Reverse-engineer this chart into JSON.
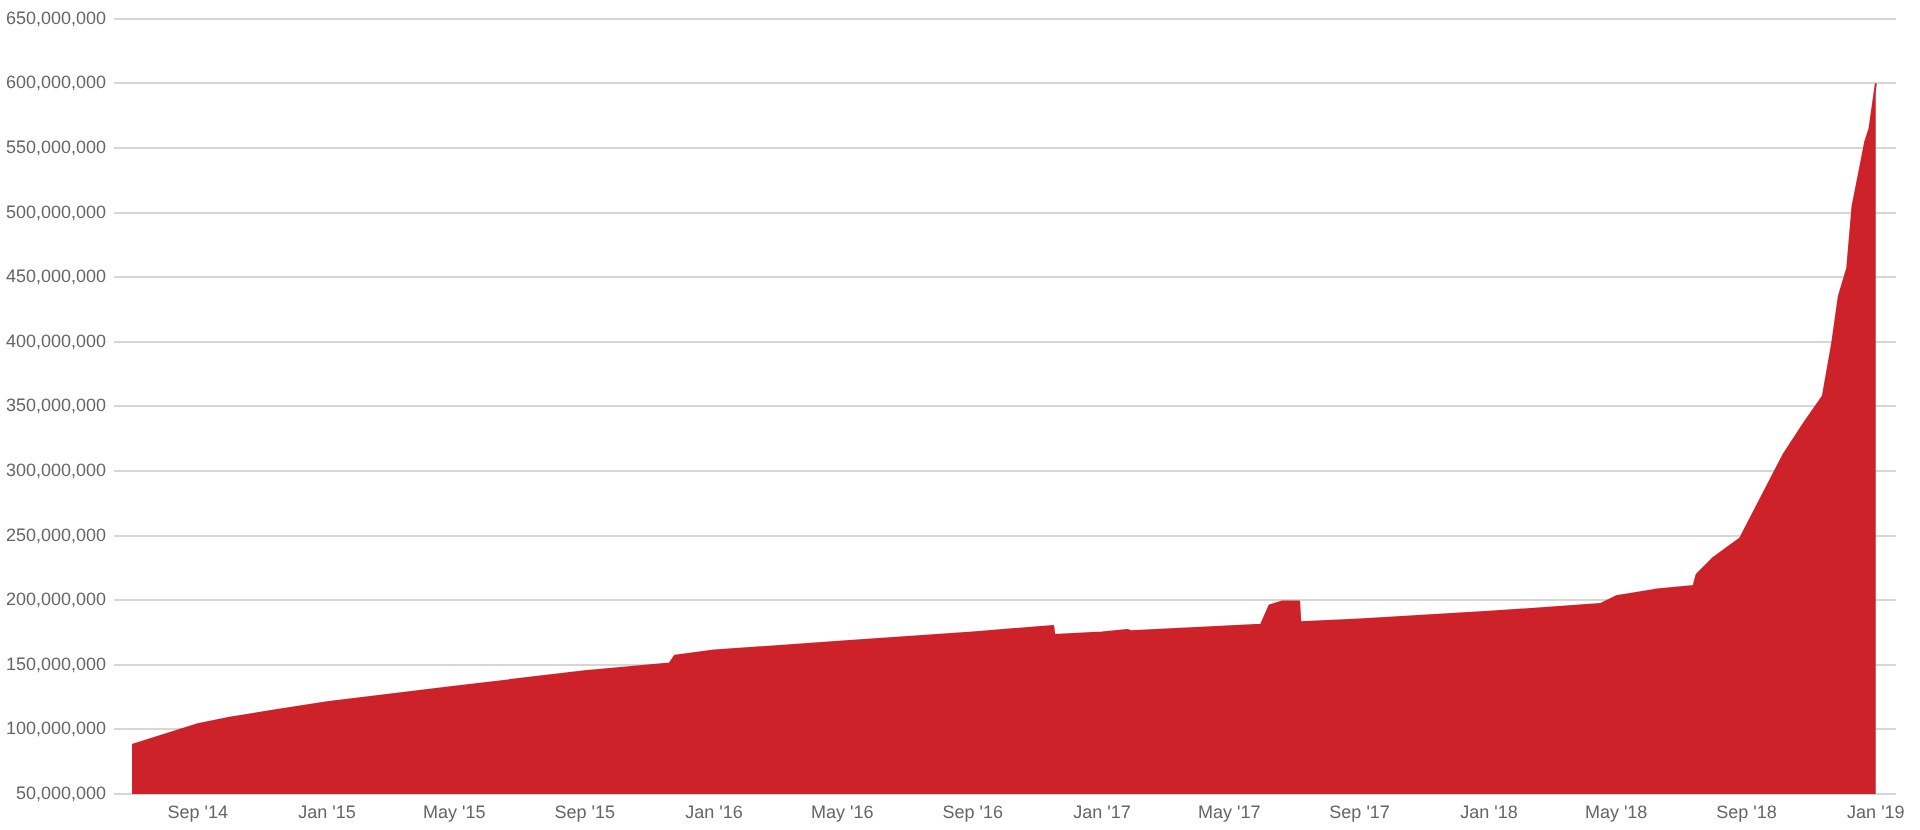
{
  "chart_data": {
    "type": "area",
    "x": [
      "2014-07-01",
      "2014-09-01",
      "2014-10-01",
      "2014-11-15",
      "2015-01-01",
      "2015-05-01",
      "2015-09-01",
      "2015-11-20",
      "2015-11-25",
      "2016-01-01",
      "2016-05-01",
      "2016-09-01",
      "2016-11-16",
      "2016-11-17",
      "2017-01-01",
      "2017-01-25",
      "2017-01-28",
      "2017-05-31",
      "2017-06-08",
      "2017-06-20",
      "2017-07-06",
      "2017-07-07",
      "2017-09-01",
      "2018-01-01",
      "2018-04-16",
      "2018-05-01",
      "2018-06-06",
      "2018-07-13",
      "2018-07-16",
      "2018-08-01",
      "2018-08-26",
      "2018-10-06",
      "2018-10-26",
      "2018-11-12",
      "2018-11-21",
      "2018-11-27",
      "2018-12-05",
      "2018-12-10",
      "2018-12-17",
      "2018-12-22",
      "2018-12-26",
      "2019-01-01"
    ],
    "values": [
      88000000,
      104000000,
      109000000,
      115000000,
      121000000,
      133000000,
      145000000,
      151000000,
      157000000,
      161000000,
      168000000,
      175000000,
      180000000,
      173000000,
      175000000,
      177000000,
      176000000,
      181000000,
      196000000,
      199000000,
      199000000,
      183000000,
      185000000,
      191000000,
      197000000,
      203000000,
      208000000,
      211000000,
      220000000,
      233000000,
      248000000,
      313000000,
      338000000,
      358000000,
      400000000,
      435000000,
      457000000,
      505000000,
      534000000,
      555000000,
      565000000,
      600000000
    ],
    "color": "#cd2229",
    "xlim": [
      "2014-06-14",
      "2019-01-20"
    ],
    "xticks": [
      {
        "value": "2014-09",
        "label": "Sep '14"
      },
      {
        "value": "2015-01",
        "label": "Jan '15"
      },
      {
        "value": "2015-05",
        "label": "May '15"
      },
      {
        "value": "2015-09",
        "label": "Sep '15"
      },
      {
        "value": "2016-01",
        "label": "Jan '16"
      },
      {
        "value": "2016-05",
        "label": "May '16"
      },
      {
        "value": "2016-09",
        "label": "Sep '16"
      },
      {
        "value": "2017-01",
        "label": "Jan '17"
      },
      {
        "value": "2017-05",
        "label": "May '17"
      },
      {
        "value": "2017-09",
        "label": "Sep '17"
      },
      {
        "value": "2018-01",
        "label": "Jan '18"
      },
      {
        "value": "2018-05",
        "label": "May '18"
      },
      {
        "value": "2018-09",
        "label": "Sep '18"
      },
      {
        "value": "2019-01",
        "label": "Jan '19"
      }
    ],
    "ylim": [
      50000000,
      650000000
    ],
    "yticks": [
      {
        "value": 50000000,
        "label": "50,000,000"
      },
      {
        "value": 100000000,
        "label": "100,000,000"
      },
      {
        "value": 150000000,
        "label": "150,000,000"
      },
      {
        "value": 200000000,
        "label": "200,000,000"
      },
      {
        "value": 250000000,
        "label": "250,000,000"
      },
      {
        "value": 300000000,
        "label": "300,000,000"
      },
      {
        "value": 350000000,
        "label": "350,000,000"
      },
      {
        "value": 400000000,
        "label": "400,000,000"
      },
      {
        "value": 450000000,
        "label": "450,000,000"
      },
      {
        "value": 500000000,
        "label": "500,000,000"
      },
      {
        "value": 550000000,
        "label": "550,000,000"
      },
      {
        "value": 600000000,
        "label": "600,000,000"
      },
      {
        "value": 650000000,
        "label": "650,000,000"
      }
    ],
    "grid": "y",
    "legend": false,
    "marker": "none"
  }
}
